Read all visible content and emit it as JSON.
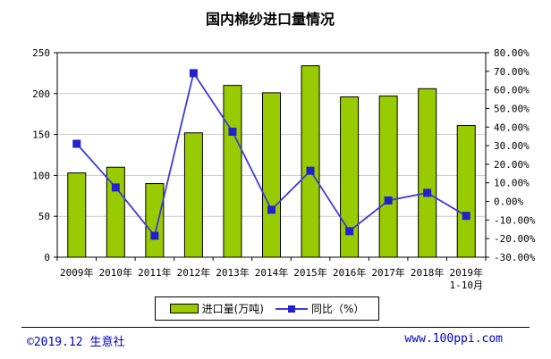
{
  "page": {
    "footer": {
      "left": "©2019.12 生意社",
      "right": "www.100ppi.com",
      "text_color": "#0000CC"
    }
  },
  "chart_data": {
    "type": "combo-bar-line",
    "title": "国内棉纱进口量情况",
    "categories": [
      "2009年",
      "2010年",
      "2011年",
      "2012年",
      "2013年",
      "2014年",
      "2015年",
      "2016年",
      "2017年",
      "2018年",
      "2019年"
    ],
    "last_category_second_line": "1-10月",
    "series": [
      {
        "name": "进口量(万吨)",
        "type": "bar",
        "color": "#99CC00",
        "border_color": "#000000",
        "values": [
          103,
          110,
          90,
          152,
          210,
          201,
          234,
          196,
          197,
          206,
          161
        ]
      },
      {
        "name": "同比（%）",
        "type": "line",
        "color": "#3B3BDB",
        "marker_color": "#2121CF",
        "values": [
          31.0,
          7.5,
          -18.5,
          69.0,
          37.5,
          -4.5,
          16.5,
          -16.0,
          0.5,
          4.6,
          -7.8
        ]
      }
    ],
    "left_axis": {
      "min": 0,
      "max": 250,
      "step": 50,
      "labels": [
        "250",
        "200",
        "150",
        "100",
        "50",
        "0"
      ]
    },
    "right_axis": {
      "min": -30,
      "max": 80,
      "step": 10,
      "labels": [
        "80.00%",
        "70.00%",
        "60.00%",
        "50.00%",
        "40.00%",
        "30.00%",
        "20.00%",
        "10.00%",
        "0.00%",
        "-10.00%",
        "-20.00%",
        "-30.00%"
      ]
    },
    "gridlines": {
      "horizontal": true,
      "color": "#C9C9C9"
    },
    "legend": {
      "position": "bottom-center"
    }
  }
}
